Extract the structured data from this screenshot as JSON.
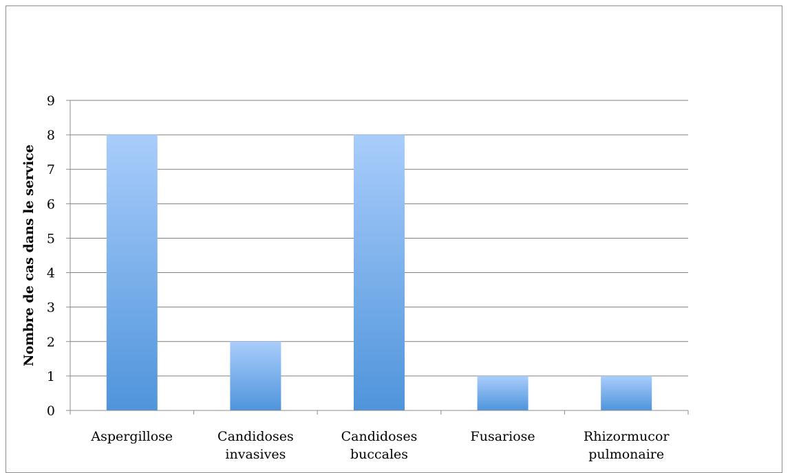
{
  "chart_data": {
    "type": "bar",
    "categories": [
      [
        "Aspergillose"
      ],
      [
        "Candidoses",
        "invasives"
      ],
      [
        "Candidoses",
        "buccales"
      ],
      [
        "Fusariose"
      ],
      [
        "Rhizormucor",
        "pulmonaire"
      ]
    ],
    "values": [
      8,
      2,
      8,
      1,
      1
    ],
    "title": "",
    "xlabel": "",
    "ylabel": "Nombre de cas dans le service",
    "ylim": [
      0,
      9
    ],
    "yticks": [
      0,
      1,
      2,
      3,
      4,
      5,
      6,
      7,
      8,
      9
    ],
    "grid": true,
    "legend": "none",
    "colors": {
      "bar_top": "#a9cdfb",
      "bar_bottom": "#4f94db",
      "grid": "#7f7f7f",
      "axis": "#8c8c8c"
    }
  }
}
